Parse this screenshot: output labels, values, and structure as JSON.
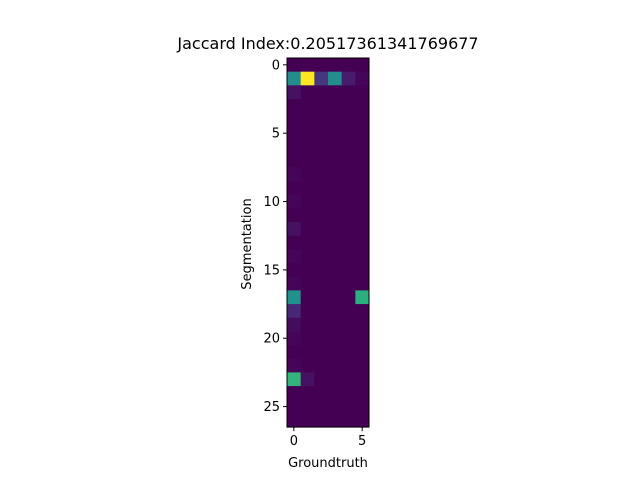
{
  "chart_data": {
    "type": "heatmap",
    "title": "Jaccard Index:0.20517361341769677",
    "xlabel": "Groundtruth",
    "ylabel": "Segmentation",
    "x_ticks": [
      0,
      5
    ],
    "y_ticks": [
      0,
      5,
      10,
      15,
      20,
      25
    ],
    "n_rows": 27,
    "n_cols": 6,
    "colormap": "viridis",
    "vmin": 0,
    "vmax": 1,
    "values": [
      [
        0,
        0,
        0,
        0,
        0,
        0
      ],
      [
        0.48,
        1.0,
        0.18,
        0.48,
        0.1,
        0.02
      ],
      [
        0.06,
        0,
        0,
        0,
        0,
        0
      ],
      [
        0,
        0,
        0,
        0,
        0,
        0
      ],
      [
        0,
        0,
        0,
        0,
        0,
        0
      ],
      [
        0,
        0,
        0,
        0,
        0,
        0
      ],
      [
        0,
        0,
        0,
        0,
        0,
        0
      ],
      [
        0,
        0,
        0,
        0,
        0,
        0
      ],
      [
        0.02,
        0,
        0,
        0,
        0,
        0
      ],
      [
        0,
        0,
        0,
        0,
        0,
        0
      ],
      [
        0.02,
        0,
        0,
        0,
        0,
        0
      ],
      [
        0,
        0,
        0,
        0,
        0,
        0
      ],
      [
        0.06,
        0,
        0,
        0,
        0,
        0
      ],
      [
        0,
        0,
        0,
        0,
        0,
        0
      ],
      [
        0.02,
        0,
        0,
        0,
        0,
        0
      ],
      [
        0,
        0,
        0,
        0,
        0,
        0
      ],
      [
        0.02,
        0,
        0,
        0,
        0,
        0
      ],
      [
        0.5,
        0,
        0,
        0,
        0,
        0.64
      ],
      [
        0.14,
        0,
        0,
        0,
        0,
        0
      ],
      [
        0.04,
        0,
        0,
        0,
        0,
        0
      ],
      [
        0.02,
        0,
        0,
        0,
        0,
        0
      ],
      [
        0,
        0,
        0,
        0,
        0,
        0
      ],
      [
        0.02,
        0,
        0,
        0,
        0,
        0
      ],
      [
        0.66,
        0.06,
        0,
        0,
        0,
        0
      ],
      [
        0,
        0,
        0,
        0,
        0,
        0
      ],
      [
        0,
        0,
        0,
        0,
        0,
        0
      ],
      [
        0,
        0,
        0,
        0,
        0,
        0
      ]
    ]
  }
}
